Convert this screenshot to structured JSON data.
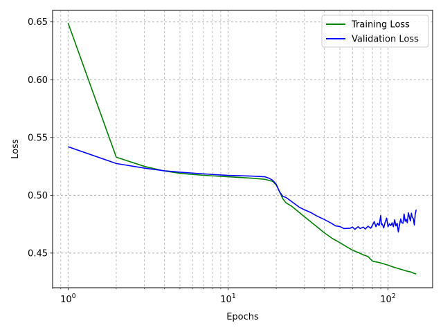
{
  "chart_data": {
    "type": "line",
    "xscale": "log",
    "xlabel": "Epochs",
    "ylabel": "Loss",
    "xlim": [
      0.8,
      190
    ],
    "ylim": [
      0.42,
      0.66
    ],
    "x_ticks": [
      {
        "value": 1,
        "base": "10",
        "exp": "0"
      },
      {
        "value": 10,
        "base": "10",
        "exp": "1"
      },
      {
        "value": 100,
        "base": "10",
        "exp": "2"
      }
    ],
    "y_ticks": [
      "0.45",
      "0.50",
      "0.55",
      "0.60",
      "0.65"
    ],
    "grid": true,
    "grid_minor_x": true,
    "legend_position": "top-right",
    "series": [
      {
        "name": "Training Loss",
        "color": "#008000",
        "points": [
          [
            1,
            0.649
          ],
          [
            2,
            0.533
          ],
          [
            3,
            0.525
          ],
          [
            4,
            0.521
          ],
          [
            5,
            0.519
          ],
          [
            6,
            0.518
          ],
          [
            8,
            0.5168
          ],
          [
            10,
            0.516
          ],
          [
            14,
            0.5148
          ],
          [
            17,
            0.5138
          ],
          [
            19,
            0.512
          ],
          [
            20,
            0.509
          ],
          [
            21,
            0.503
          ],
          [
            22,
            0.497
          ],
          [
            23,
            0.4935
          ],
          [
            25,
            0.4905
          ],
          [
            30,
            0.4815
          ],
          [
            35,
            0.474
          ],
          [
            40,
            0.4675
          ],
          [
            45,
            0.4625
          ],
          [
            50,
            0.459
          ],
          [
            55,
            0.4555
          ],
          [
            60,
            0.4525
          ],
          [
            65,
            0.4505
          ],
          [
            70,
            0.4485
          ],
          [
            75,
            0.447
          ],
          [
            80,
            0.443
          ],
          [
            90,
            0.4415
          ],
          [
            100,
            0.4395
          ],
          [
            110,
            0.4375
          ],
          [
            120,
            0.436
          ],
          [
            130,
            0.4345
          ],
          [
            140,
            0.4335
          ],
          [
            145,
            0.4325
          ],
          [
            150,
            0.432
          ]
        ]
      },
      {
        "name": "Validation Loss",
        "color": "#0000ff",
        "points": [
          [
            1,
            0.542
          ],
          [
            2,
            0.5275
          ],
          [
            3,
            0.5235
          ],
          [
            4,
            0.5212
          ],
          [
            5,
            0.52
          ],
          [
            6,
            0.5192
          ],
          [
            8,
            0.518
          ],
          [
            10,
            0.5172
          ],
          [
            14,
            0.5166
          ],
          [
            17,
            0.516
          ],
          [
            18,
            0.5148
          ],
          [
            19,
            0.513
          ],
          [
            20,
            0.5095
          ],
          [
            21,
            0.503
          ],
          [
            22,
            0.499
          ],
          [
            23,
            0.4982
          ],
          [
            25,
            0.4945
          ],
          [
            28,
            0.4895
          ],
          [
            30,
            0.4875
          ],
          [
            33,
            0.485
          ],
          [
            36,
            0.482
          ],
          [
            40,
            0.479
          ],
          [
            44,
            0.476
          ],
          [
            47,
            0.4735
          ],
          [
            50,
            0.473
          ],
          [
            53,
            0.4712
          ],
          [
            58,
            0.4715
          ],
          [
            60,
            0.4725
          ],
          [
            62,
            0.4705
          ],
          [
            65,
            0.4728
          ],
          [
            67,
            0.4712
          ],
          [
            70,
            0.4725
          ],
          [
            72,
            0.4708
          ],
          [
            75,
            0.4732
          ],
          [
            78,
            0.4715
          ],
          [
            80,
            0.4742
          ],
          [
            82,
            0.4772
          ],
          [
            84,
            0.4728
          ],
          [
            86,
            0.4758
          ],
          [
            88,
            0.4738
          ],
          [
            90,
            0.4825
          ],
          [
            91,
            0.4745
          ],
          [
            92,
            0.4752
          ],
          [
            94,
            0.4718
          ],
          [
            96,
            0.4768
          ],
          [
            98,
            0.4802
          ],
          [
            100,
            0.4728
          ],
          [
            102,
            0.4752
          ],
          [
            104,
            0.4738
          ],
          [
            106,
            0.4762
          ],
          [
            108,
            0.4728
          ],
          [
            110,
            0.4788
          ],
          [
            112,
            0.4735
          ],
          [
            114,
            0.4758
          ],
          [
            116,
            0.4682
          ],
          [
            118,
            0.4745
          ],
          [
            120,
            0.4795
          ],
          [
            122,
            0.4762
          ],
          [
            124,
            0.4758
          ],
          [
            126,
            0.4838
          ],
          [
            128,
            0.4775
          ],
          [
            130,
            0.4792
          ],
          [
            132,
            0.4762
          ],
          [
            134,
            0.4848
          ],
          [
            136,
            0.4812
          ],
          [
            138,
            0.4778
          ],
          [
            140,
            0.4845
          ],
          [
            142,
            0.4808
          ],
          [
            144,
            0.4798
          ],
          [
            146,
            0.4742
          ],
          [
            148,
            0.4838
          ],
          [
            150,
            0.4875
          ]
        ]
      }
    ]
  }
}
